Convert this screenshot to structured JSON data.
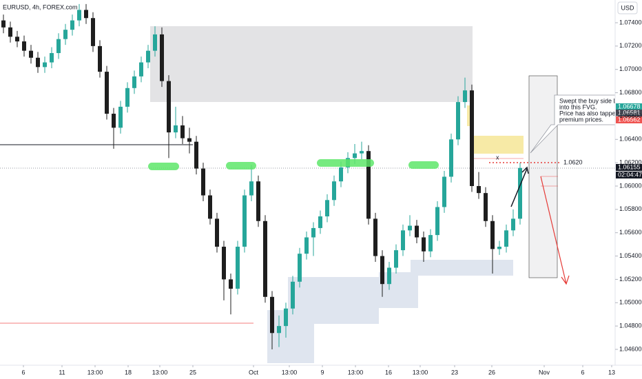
{
  "header": {
    "symbol": "EURUSD, 4h, FOREX.com",
    "currency": "USD"
  },
  "callout": [
    "Swept the buy side LQ",
    "into this FVG.",
    "Price has also tapped",
    "premium prices."
  ],
  "level_label": "1.0620",
  "badges": [
    {
      "label": "1.06678",
      "color": "#26a69a"
    },
    {
      "label": "1.06581",
      "color": "#434651"
    },
    {
      "label": "1.06562",
      "color": "#ef5350"
    },
    {
      "label": "1.06155",
      "color": "#131722"
    },
    {
      "label": "02:04:47",
      "color": "#131722"
    }
  ],
  "chart_data": {
    "type": "candlestick",
    "up_color": "#26a69a",
    "down_color": "#1e1e1e",
    "open": [
      1.0742,
      1.0736,
      1.0728,
      1.0724,
      1.0716,
      1.071,
      1.0702,
      1.0706,
      1.0714,
      1.0726,
      1.0734,
      1.0742,
      1.0751,
      1.0744,
      1.072,
      1.0698,
      1.0662,
      1.065,
      1.0668,
      1.0684,
      1.0694,
      1.0706,
      1.0716,
      1.073,
      1.069,
      1.0646,
      1.0652,
      1.0641,
      1.0638,
      1.0615,
      1.0592,
      1.0572,
      1.0548,
      1.052,
      1.0512,
      1.0548,
      1.0592,
      1.0604,
      1.057,
      1.0505,
      1.0474,
      1.048,
      1.0495,
      1.0518,
      1.0542,
      1.0556,
      1.0564,
      1.0574,
      1.0588,
      1.0604,
      1.0616,
      1.0624,
      1.0628,
      1.063,
      1.0572,
      1.054,
      1.0516,
      1.053,
      1.0545,
      1.0562,
      1.0566,
      1.0556,
      1.0544,
      1.0558,
      1.0582,
      1.0608,
      1.064,
      1.0672,
      1.0682,
      1.06,
      1.0594,
      1.057,
      1.0546,
      1.0548,
      1.0562,
      1.0572
    ],
    "high": [
      1.0747,
      1.0741,
      1.0733,
      1.0729,
      1.0721,
      1.0715,
      1.0711,
      1.0719,
      1.0731,
      1.0739,
      1.0747,
      1.0756,
      1.0756,
      1.0749,
      1.0725,
      1.0703,
      1.0667,
      1.0673,
      1.0689,
      1.0699,
      1.0711,
      1.0721,
      1.0737,
      1.0736,
      1.0695,
      1.0668,
      1.066,
      1.065,
      1.0643,
      1.062,
      1.0597,
      1.0577,
      1.0553,
      1.0525,
      1.0553,
      1.0597,
      1.0618,
      1.0609,
      1.0575,
      1.051,
      1.0489,
      1.05,
      1.0523,
      1.0547,
      1.0561,
      1.0569,
      1.0579,
      1.0593,
      1.0609,
      1.0621,
      1.0629,
      1.0636,
      1.0638,
      1.0635,
      1.0577,
      1.0545,
      1.0535,
      1.055,
      1.0567,
      1.0575,
      1.0571,
      1.0561,
      1.0563,
      1.0587,
      1.0613,
      1.0645,
      1.0677,
      1.0693,
      1.0687,
      1.0612,
      1.0599,
      1.0575,
      1.0553,
      1.0567,
      1.058,
      1.062
    ],
    "low": [
      1.0731,
      1.0723,
      1.0719,
      1.0711,
      1.0705,
      1.0697,
      1.0697,
      1.0701,
      1.0709,
      1.0721,
      1.0729,
      1.0737,
      1.0739,
      1.0715,
      1.0693,
      1.0657,
      1.0632,
      1.0645,
      1.0663,
      1.0679,
      1.0689,
      1.0701,
      1.0711,
      1.0685,
      1.0624,
      1.0641,
      1.0636,
      1.0628,
      1.061,
      1.0587,
      1.0567,
      1.0543,
      1.0502,
      1.049,
      1.0507,
      1.0543,
      1.0587,
      1.0565,
      1.05,
      1.046,
      1.0462,
      1.047,
      1.049,
      1.0513,
      1.0537,
      1.054,
      1.0559,
      1.0569,
      1.0583,
      1.0599,
      1.0611,
      1.0619,
      1.0623,
      1.0567,
      1.0535,
      1.0505,
      1.0511,
      1.0525,
      1.054,
      1.0557,
      1.0551,
      1.0535,
      1.0539,
      1.0553,
      1.0577,
      1.0603,
      1.0635,
      1.0667,
      1.0595,
      1.0589,
      1.0565,
      1.0525,
      1.0541,
      1.0543,
      1.0557,
      1.0567
    ],
    "close": [
      1.0736,
      1.0728,
      1.0724,
      1.0716,
      1.071,
      1.0702,
      1.0706,
      1.0714,
      1.0726,
      1.0734,
      1.0742,
      1.0751,
      1.0744,
      1.072,
      1.0698,
      1.0662,
      1.065,
      1.0668,
      1.0684,
      1.0694,
      1.0706,
      1.0716,
      1.073,
      1.069,
      1.0646,
      1.0652,
      1.0641,
      1.0638,
      1.0615,
      1.0592,
      1.0572,
      1.0548,
      1.052,
      1.0512,
      1.0548,
      1.0592,
      1.0604,
      1.057,
      1.0505,
      1.0474,
      1.048,
      1.0495,
      1.0518,
      1.0542,
      1.0556,
      1.0564,
      1.0574,
      1.0588,
      1.0604,
      1.0616,
      1.0624,
      1.0628,
      1.063,
      1.0572,
      1.054,
      1.0516,
      1.053,
      1.0545,
      1.0562,
      1.0566,
      1.0556,
      1.0544,
      1.0558,
      1.0582,
      1.0608,
      1.064,
      1.0672,
      1.0682,
      1.06,
      1.0594,
      1.057,
      1.0546,
      1.0548,
      1.0562,
      1.0572,
      1.06155
    ],
    "xlim": [
      -0.5,
      88.8
    ],
    "xticks": [
      {
        "value": 2.9,
        "label": "6"
      },
      {
        "value": 8.5,
        "label": "11"
      },
      {
        "value": 13.3,
        "label": "13:00"
      },
      {
        "value": 18.1,
        "label": "18"
      },
      {
        "value": 22.7,
        "label": "13:00"
      },
      {
        "value": 27.5,
        "label": "25"
      },
      {
        "value": 36.3,
        "label": "Oct"
      },
      {
        "value": 41.5,
        "label": "13:00"
      },
      {
        "value": 46.3,
        "label": "9"
      },
      {
        "value": 51.1,
        "label": "13:00"
      },
      {
        "value": 55.9,
        "label": "16"
      },
      {
        "value": 60.5,
        "label": "13:00"
      },
      {
        "value": 65.5,
        "label": "23"
      },
      {
        "value": 70.9,
        "label": "26"
      },
      {
        "value": 78.5,
        "label": "Nov"
      },
      {
        "value": 84.1,
        "label": "6"
      },
      {
        "value": 88.3,
        "label": "13"
      }
    ],
    "ylim": [
      1.04464,
      1.07595
    ],
    "yticks": [
      {
        "value": 1.046,
        "label": "1.04600"
      },
      {
        "value": 1.048,
        "label": "1.04800"
      },
      {
        "value": 1.05,
        "label": "1.05000"
      },
      {
        "value": 1.052,
        "label": "1.05200"
      },
      {
        "value": 1.054,
        "label": "1.05400"
      },
      {
        "value": 1.056,
        "label": "1.05600"
      },
      {
        "value": 1.058,
        "label": "1.05800"
      },
      {
        "value": 1.06,
        "label": "1.06000"
      },
      {
        "value": 1.062,
        "label": "1.06200"
      },
      {
        "value": 1.064,
        "label": "1.06400"
      },
      {
        "value": 1.066,
        "label": "1.06600"
      },
      {
        "value": 1.068,
        "label": "1.06800"
      },
      {
        "value": 1.07,
        "label": "1.07000"
      },
      {
        "value": 1.072,
        "label": "1.07200"
      },
      {
        "value": 1.074,
        "label": "1.07400"
      }
    ]
  }
}
